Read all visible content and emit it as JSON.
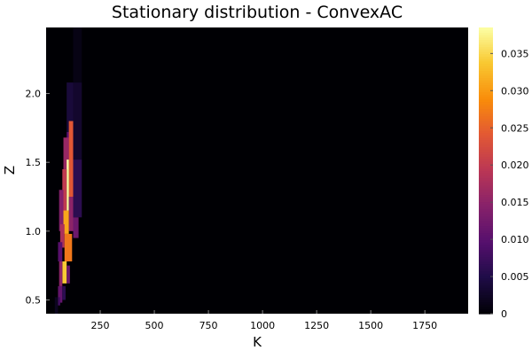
{
  "chart_data": {
    "type": "heatmap",
    "title": "Stationary distribution - ConvexAC",
    "xlabel": "K",
    "ylabel": "Z",
    "xlim": [
      0,
      1950
    ],
    "ylim": [
      0.4,
      2.48
    ],
    "xticks": [
      {
        "value": 250,
        "label": "250"
      },
      {
        "value": 500,
        "label": "500"
      },
      {
        "value": 750,
        "label": "750"
      },
      {
        "value": 1000,
        "label": "1000"
      },
      {
        "value": 1250,
        "label": "1250"
      },
      {
        "value": 1500,
        "label": "1500"
      },
      {
        "value": 1750,
        "label": "1750"
      }
    ],
    "yticks": [
      {
        "value": 0.5,
        "label": "0.5"
      },
      {
        "value": 1.0,
        "label": "1.0"
      },
      {
        "value": 1.5,
        "label": "1.5"
      },
      {
        "value": 2.0,
        "label": "2.0"
      }
    ],
    "colorbar": {
      "min": 0,
      "max": 0.0385,
      "ticks": [
        {
          "value": 0,
          "label": "0"
        },
        {
          "value": 0.005,
          "label": "0.005"
        },
        {
          "value": 0.01,
          "label": "0.010"
        },
        {
          "value": 0.015,
          "label": "0.015"
        },
        {
          "value": 0.02,
          "label": "0.020"
        },
        {
          "value": 0.025,
          "label": "0.025"
        },
        {
          "value": 0.03,
          "label": "0.030"
        },
        {
          "value": 0.035,
          "label": "0.035"
        }
      ]
    },
    "background_value": 0,
    "cells": [
      {
        "k": [
          125,
          165
        ],
        "z": [
          2.08,
          2.48
        ],
        "value": 0.0012
      },
      {
        "k": [
          125,
          165
        ],
        "z": [
          1.52,
          2.08
        ],
        "value": 0.003
      },
      {
        "k": [
          95,
          125
        ],
        "z": [
          1.72,
          2.08
        ],
        "value": 0.004
      },
      {
        "k": [
          95,
          125
        ],
        "z": [
          1.52,
          1.72
        ],
        "value": 0.01
      },
      {
        "k": [
          125,
          165
        ],
        "z": [
          1.1,
          1.52
        ],
        "value": 0.006
      },
      {
        "k": [
          105,
          125
        ],
        "z": [
          1.25,
          1.8
        ],
        "value": 0.024
      },
      {
        "k": [
          80,
          105
        ],
        "z": [
          1.45,
          1.68
        ],
        "value": 0.016
      },
      {
        "k": [
          95,
          105
        ],
        "z": [
          1.15,
          1.52
        ],
        "value": 0.0385
      },
      {
        "k": [
          75,
          95
        ],
        "z": [
          1.1,
          1.45
        ],
        "value": 0.02
      },
      {
        "k": [
          105,
          125
        ],
        "z": [
          1.0,
          1.25
        ],
        "value": 0.015
      },
      {
        "k": [
          125,
          150
        ],
        "z": [
          0.95,
          1.1
        ],
        "value": 0.012
      },
      {
        "k": [
          60,
          80
        ],
        "z": [
          1.0,
          1.3
        ],
        "value": 0.014
      },
      {
        "k": [
          80,
          105
        ],
        "z": [
          0.98,
          1.15
        ],
        "value": 0.031
      },
      {
        "k": [
          65,
          85
        ],
        "z": [
          0.88,
          1.05
        ],
        "value": 0.018
      },
      {
        "k": [
          85,
          120
        ],
        "z": [
          0.78,
          0.98
        ],
        "value": 0.027
      },
      {
        "k": [
          55,
          75
        ],
        "z": [
          0.78,
          0.92
        ],
        "value": 0.01
      },
      {
        "k": [
          75,
          95
        ],
        "z": [
          0.62,
          0.78
        ],
        "value": 0.034
      },
      {
        "k": [
          60,
          75
        ],
        "z": [
          0.6,
          0.78
        ],
        "value": 0.015
      },
      {
        "k": [
          95,
          110
        ],
        "z": [
          0.62,
          0.75
        ],
        "value": 0.012
      },
      {
        "k": [
          55,
          75
        ],
        "z": [
          0.48,
          0.6
        ],
        "value": 0.011
      },
      {
        "k": [
          75,
          90
        ],
        "z": [
          0.5,
          0.6
        ],
        "value": 0.006
      },
      {
        "k": [
          40,
          55
        ],
        "z": [
          0.4,
          0.52
        ],
        "value": 0.002
      },
      {
        "k": [
          55,
          65
        ],
        "z": [
          0.46,
          0.52
        ],
        "value": 0.008
      }
    ]
  }
}
